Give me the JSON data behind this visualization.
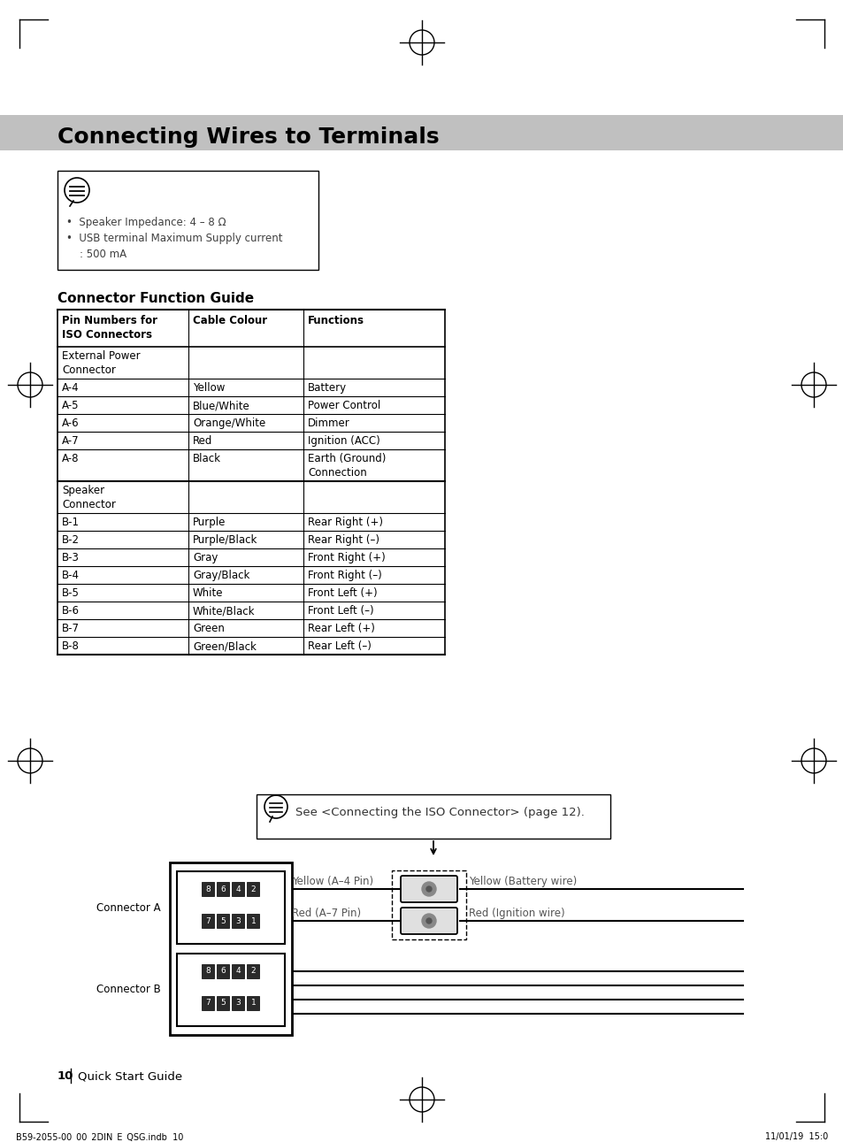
{
  "title": "Connecting Wires to Terminals",
  "bg_color": "#ffffff",
  "title_bar_color": "#c0c0c0",
  "note_lines": [
    "•  Speaker Impedance: 4 – 8 Ω",
    "•  USB terminal Maximum Supply current",
    "    : 500 mA"
  ],
  "table_title": "Connector Function Guide",
  "table_headers": [
    "Pin Numbers for\nISO Connectors",
    "Cable Colour",
    "Functions"
  ],
  "table_rows": [
    [
      "External Power\nConnector",
      "",
      ""
    ],
    [
      "A-4",
      "Yellow",
      "Battery"
    ],
    [
      "A-5",
      "Blue/White",
      "Power Control"
    ],
    [
      "A-6",
      "Orange/White",
      "Dimmer"
    ],
    [
      "A-7",
      "Red",
      "Ignition (ACC)"
    ],
    [
      "A-8",
      "Black",
      "Earth (Ground)\nConnection"
    ],
    [
      "Speaker\nConnector",
      "",
      ""
    ],
    [
      "B-1",
      "Purple",
      "Rear Right (+)"
    ],
    [
      "B-2",
      "Purple/Black",
      "Rear Right (–)"
    ],
    [
      "B-3",
      "Gray",
      "Front Right (+)"
    ],
    [
      "B-4",
      "Gray/Black",
      "Front Right (–)"
    ],
    [
      "B-5",
      "White",
      "Front Left (+)"
    ],
    [
      "B-6",
      "White/Black",
      "Front Left (–)"
    ],
    [
      "B-7",
      "Green",
      "Rear Left (+)"
    ],
    [
      "B-8",
      "Green/Black",
      "Rear Left (–)"
    ]
  ],
  "callout_text": "See <Connecting the ISO Connector> (page 12).",
  "diagram_labels": {
    "connector_a": "Connector A",
    "connector_b": "Connector B",
    "yellow_pin": "Yellow (A–4 Pin)",
    "red_pin": "Red (A–7 Pin)",
    "yellow_wire": "Yellow (Battery wire)",
    "red_wire": "Red (Ignition wire)"
  },
  "footer_left": "B59-2055-00_00_2DIN_E_QSG.indb  10",
  "footer_right": "11/01/19  15:0",
  "page_label": "10",
  "page_label2": "Quick Start Guide"
}
